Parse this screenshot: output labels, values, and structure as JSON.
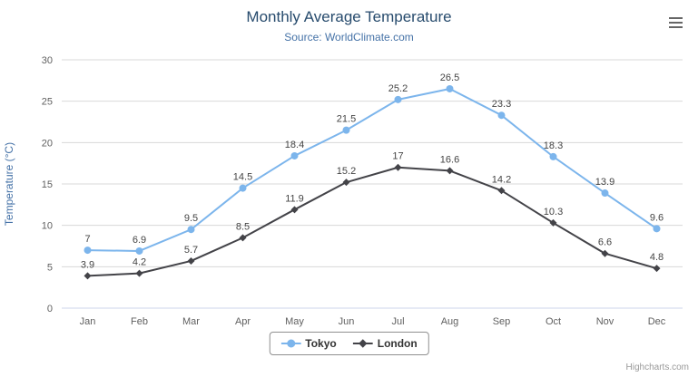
{
  "chart_data": {
    "type": "line",
    "title": "Monthly Average Temperature",
    "subtitle": "Source: WorldClimate.com",
    "categories": [
      "Jan",
      "Feb",
      "Mar",
      "Apr",
      "May",
      "Jun",
      "Jul",
      "Aug",
      "Sep",
      "Oct",
      "Nov",
      "Dec"
    ],
    "series": [
      {
        "name": "Tokyo",
        "color": "#7cb5ec",
        "marker": "circle",
        "values": [
          7,
          6.9,
          9.5,
          14.5,
          18.4,
          21.5,
          25.2,
          26.5,
          23.3,
          18.3,
          13.9,
          9.6
        ]
      },
      {
        "name": "London",
        "color": "#434348",
        "marker": "diamond",
        "values": [
          3.9,
          4.2,
          5.7,
          8.5,
          11.9,
          15.2,
          17,
          16.6,
          14.2,
          10.3,
          6.6,
          4.8
        ]
      }
    ],
    "xlabel": "",
    "ylabel": "Temperature (°C)",
    "ylim": [
      0,
      30
    ],
    "yticks": [
      0,
      5,
      10,
      15,
      20,
      25,
      30
    ],
    "grid": true,
    "data_labels": true,
    "legend_position": "bottom-center"
  },
  "credits": {
    "text": "Highcharts.com"
  }
}
